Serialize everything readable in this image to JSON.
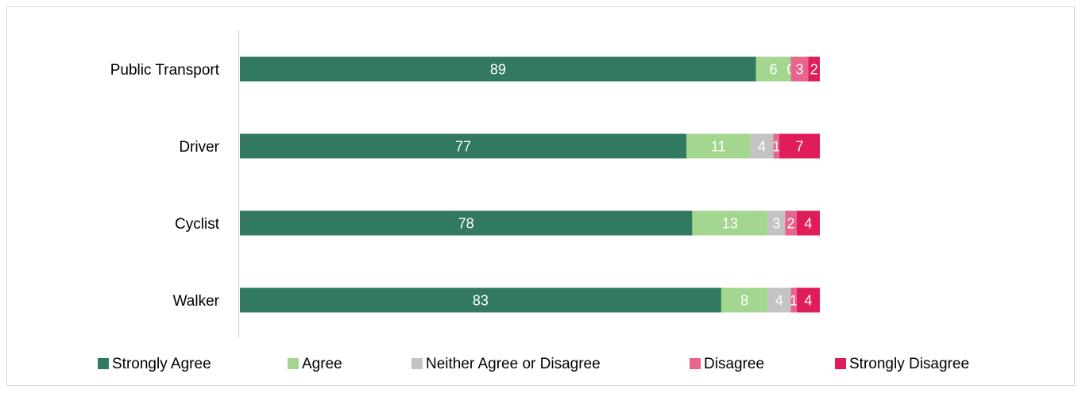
{
  "chart_data": {
    "type": "bar",
    "orientation": "horizontal",
    "stacked": true,
    "categories": [
      "Public Transport",
      "Driver",
      "Cyclist",
      "Walker"
    ],
    "series": [
      {
        "name": "Strongly Agree",
        "color": "#31795f",
        "values": [
          89,
          77,
          78,
          83
        ]
      },
      {
        "name": "Agree",
        "color": "#a3d78f",
        "values": [
          6,
          11,
          13,
          8
        ]
      },
      {
        "name": "Neither Agree or Disagree",
        "color": "#c3c3c3",
        "values": [
          0,
          4,
          3,
          4
        ]
      },
      {
        "name": "Disagree",
        "color": "#e8648c",
        "values": [
          3,
          1,
          2,
          1
        ]
      },
      {
        "name": "Strongly Disagree",
        "color": "#df1d58",
        "values": [
          2,
          7,
          4,
          4
        ]
      }
    ],
    "xlim": [
      0,
      100
    ],
    "grid": false,
    "legend_position": "bottom",
    "title": "",
    "xlabel": "",
    "ylabel": ""
  }
}
